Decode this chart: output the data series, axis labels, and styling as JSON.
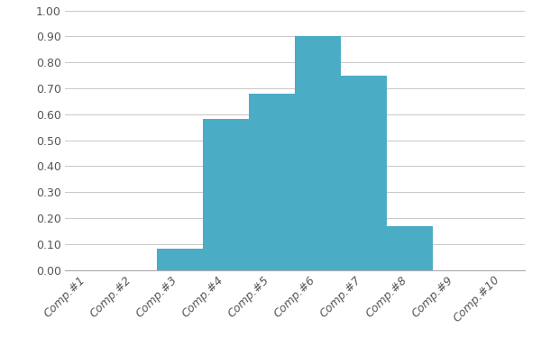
{
  "categories": [
    "Comp.#1",
    "Comp.#2",
    "Comp.#3",
    "Comp.#4",
    "Comp.#5",
    "Comp.#6",
    "Comp.#7",
    "Comp.#8",
    "Comp.#9",
    "Comp.#10"
  ],
  "values": [
    0.0,
    0.0,
    0.08,
    0.58,
    0.68,
    0.9,
    0.75,
    0.17,
    0.0,
    0.0
  ],
  "bar_color": "#4bacc6",
  "ylim": [
    0.0,
    1.0
  ],
  "yticks": [
    0.0,
    0.1,
    0.2,
    0.3,
    0.4,
    0.5,
    0.6,
    0.7,
    0.8,
    0.9,
    1.0
  ],
  "grid_color": "#c8c8c8",
  "background_color": "#ffffff",
  "tick_label_fontsize": 9,
  "bar_edge_color": "none",
  "figsize": [
    6.0,
    3.84
  ],
  "dpi": 100
}
